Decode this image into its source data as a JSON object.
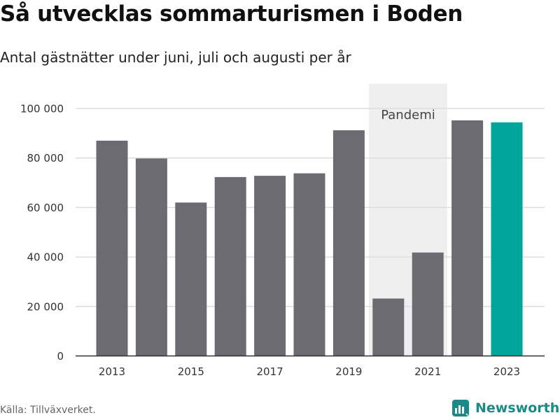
{
  "title": "Så utvecklas sommarturismen i Boden",
  "subtitle": "Antal gästnätter under juni, juli och augusti per år",
  "source": "Källa: Tillväxverket.",
  "brand": "Newsworthy",
  "colors": {
    "bar": "#6d6b72",
    "highlight": "#00a59a",
    "shade": "#efefef",
    "grid": "#dddddd",
    "brand": "#1b8a86"
  },
  "chart_data": {
    "type": "bar",
    "categories": [
      2013,
      2014,
      2015,
      2016,
      2017,
      2018,
      2019,
      2020,
      2021,
      2022,
      2023
    ],
    "values": [
      87000,
      79800,
      62000,
      72300,
      72800,
      73800,
      91200,
      23200,
      41800,
      95200,
      94400
    ],
    "highlight": [
      2023
    ],
    "xticks": [
      "2013",
      "2015",
      "2017",
      "2019",
      "2021",
      "2023"
    ],
    "yticks": [
      "0",
      "20 000",
      "40 000",
      "60 000",
      "80 000",
      "100 000"
    ],
    "ytick_values": [
      0,
      20000,
      40000,
      60000,
      80000,
      100000
    ],
    "ylim": [
      0,
      110000
    ],
    "xlabel": "",
    "ylabel": "",
    "grid": true,
    "shaded_region": {
      "from": 2020,
      "to": 2021,
      "label": "Pandemi"
    }
  }
}
